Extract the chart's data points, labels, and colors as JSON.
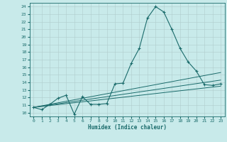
{
  "xlabel": "Humidex (Indice chaleur)",
  "ylabel": "",
  "xlim": [
    -0.5,
    23.5
  ],
  "ylim": [
    9.5,
    24.5
  ],
  "xticks": [
    0,
    1,
    2,
    3,
    4,
    5,
    6,
    7,
    8,
    9,
    10,
    11,
    12,
    13,
    14,
    15,
    16,
    17,
    18,
    19,
    20,
    21,
    22,
    23
  ],
  "yticks": [
    10,
    11,
    12,
    13,
    14,
    15,
    16,
    17,
    18,
    19,
    20,
    21,
    22,
    23,
    24
  ],
  "bg_color": "#c8eaea",
  "line_color": "#1a6b6b",
  "grid_color": "#b0cccc",
  "main_line": [
    [
      0,
      10.7
    ],
    [
      1,
      10.4
    ],
    [
      2,
      11.1
    ],
    [
      3,
      11.9
    ],
    [
      4,
      12.3
    ],
    [
      5,
      9.8
    ],
    [
      6,
      12.1
    ],
    [
      7,
      11.1
    ],
    [
      8,
      11.1
    ],
    [
      9,
      11.2
    ],
    [
      10,
      13.8
    ],
    [
      11,
      13.9
    ],
    [
      12,
      16.5
    ],
    [
      13,
      18.5
    ],
    [
      14,
      22.5
    ],
    [
      15,
      24.0
    ],
    [
      16,
      23.3
    ],
    [
      17,
      21.0
    ],
    [
      18,
      18.5
    ],
    [
      19,
      16.7
    ],
    [
      20,
      15.5
    ],
    [
      21,
      13.7
    ],
    [
      22,
      13.6
    ],
    [
      23,
      13.8
    ]
  ],
  "trend_line1": [
    [
      0,
      10.7
    ],
    [
      23,
      15.3
    ]
  ],
  "trend_line2": [
    [
      0,
      10.7
    ],
    [
      23,
      14.3
    ]
  ],
  "trend_line3": [
    [
      0,
      10.7
    ],
    [
      23,
      13.5
    ]
  ]
}
